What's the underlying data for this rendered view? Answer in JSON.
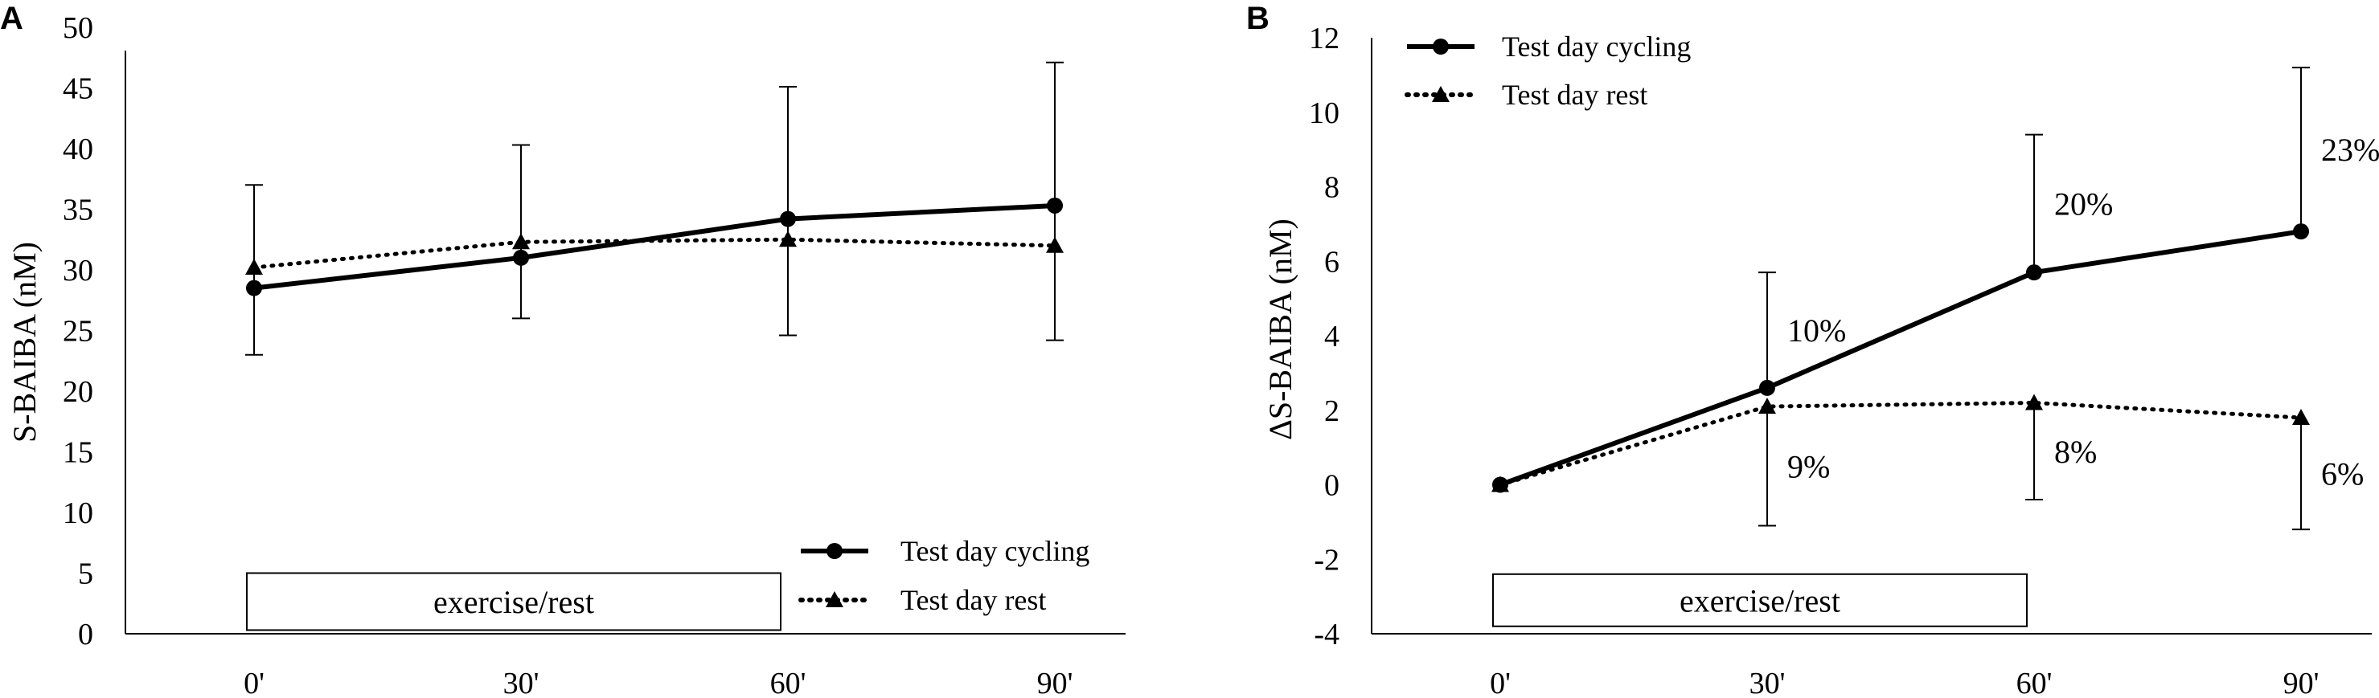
{
  "chart_data": [
    {
      "panel": "A",
      "type": "line",
      "ylabel": "S-BAIBA (nM)",
      "xlabel": "",
      "ylim": [
        0,
        50
      ],
      "yticks": [
        0,
        5,
        10,
        15,
        20,
        25,
        30,
        35,
        40,
        45,
        50
      ],
      "ytick_labels": [
        "0",
        "5",
        "10",
        "15",
        "20",
        "25",
        "30",
        "35",
        "40",
        "45",
        "50"
      ],
      "categories": [
        "0'",
        "30'",
        "60'",
        "90'"
      ],
      "series": [
        {
          "name": "Test day cycling",
          "style": "solid",
          "marker": "circle",
          "values": [
            28.5,
            31.0,
            34.2,
            35.3
          ],
          "err_upper": [
            37.0,
            40.3,
            45.1,
            47.1
          ],
          "err_lower": [
            23.0,
            26.0,
            24.6,
            24.2
          ]
        },
        {
          "name": "Test day rest",
          "style": "dotted",
          "marker": "triangle",
          "values": [
            30.2,
            32.3,
            32.5,
            32.0
          ]
        }
      ],
      "box_label": "exercise/rest",
      "box_range": [
        "0'",
        "60'"
      ],
      "box_y": [
        0.3,
        5.0
      ],
      "legend": [
        "Test day cycling",
        "Test day rest"
      ],
      "legend_position": "bottom-right"
    },
    {
      "panel": "B",
      "type": "line",
      "ylabel": "ΔS-BAIBA (nM)",
      "xlabel": "",
      "ylim": [
        -4,
        12
      ],
      "yticks": [
        -4,
        -2,
        0,
        2,
        4,
        6,
        8,
        10,
        12
      ],
      "ytick_labels": [
        "-4",
        "-2",
        "0",
        "2",
        "4",
        "6",
        "8",
        "10",
        "12"
      ],
      "categories": [
        "0'",
        "30'",
        "60'",
        "90'"
      ],
      "series": [
        {
          "name": "Test day cycling",
          "style": "solid",
          "marker": "circle",
          "values": [
            0,
            2.6,
            5.7,
            6.8
          ],
          "err_upper": [
            null,
            5.7,
            9.4,
            11.2
          ],
          "annotations": [
            "",
            "10%",
            "20%",
            "23%"
          ]
        },
        {
          "name": "Test day rest",
          "style": "dotted",
          "marker": "triangle",
          "values": [
            0,
            2.1,
            2.2,
            1.8
          ],
          "err_lower": [
            null,
            -1.1,
            -0.4,
            -1.2
          ],
          "annotations": [
            "",
            "9%",
            "8%",
            "6%"
          ]
        }
      ],
      "box_label": "exercise/rest",
      "box_range": [
        "0'",
        "60'"
      ],
      "box_y": [
        -3.8,
        -2.4
      ],
      "legend": [
        "Test day cycling",
        "Test day rest"
      ],
      "legend_position": "top-left"
    }
  ]
}
